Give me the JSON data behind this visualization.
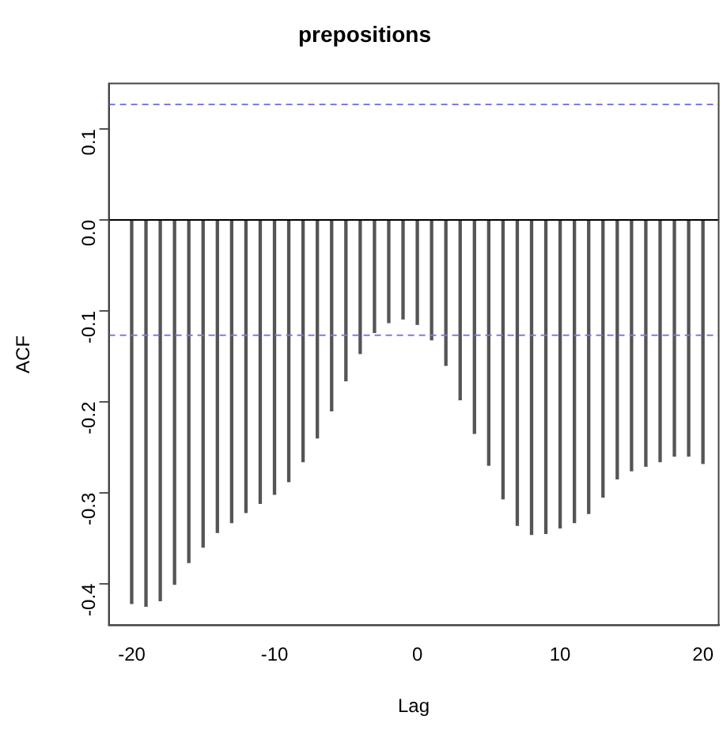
{
  "chart_data": {
    "type": "bar",
    "title": "prepositions",
    "xlabel": "Lag",
    "ylabel": "ACF",
    "x": [
      -20,
      -19,
      -18,
      -17,
      -16,
      -15,
      -14,
      -13,
      -12,
      -11,
      -10,
      -9,
      -8,
      -7,
      -6,
      -5,
      -4,
      -3,
      -2,
      -1,
      0,
      1,
      2,
      3,
      4,
      5,
      6,
      7,
      8,
      9,
      10,
      11,
      12,
      13,
      14,
      15,
      16,
      17,
      18,
      19,
      20
    ],
    "values": [
      -0.422,
      -0.425,
      -0.419,
      -0.401,
      -0.377,
      -0.36,
      -0.344,
      -0.333,
      -0.322,
      -0.312,
      -0.302,
      -0.288,
      -0.266,
      -0.24,
      -0.21,
      -0.177,
      -0.147,
      -0.124,
      -0.113,
      -0.109,
      -0.115,
      -0.132,
      -0.16,
      -0.198,
      -0.235,
      -0.27,
      -0.307,
      -0.336,
      -0.346,
      -0.345,
      -0.339,
      -0.333,
      -0.323,
      -0.305,
      -0.285,
      -0.276,
      -0.271,
      -0.266,
      -0.26,
      -0.26,
      -0.268
    ],
    "color": "#555555",
    "xlim": [
      -21.6,
      21.1
    ],
    "xticks": [
      -20,
      -10,
      0,
      10,
      20
    ],
    "ylim": [
      -0.446,
      0.15
    ],
    "yticks": [
      -0.4,
      -0.3,
      -0.2,
      -0.1,
      {
        "value": 0,
        "label": "0.0"
      },
      0.1
    ],
    "ref_lines": [
      {
        "axis": "y",
        "value": 0,
        "color": "#000000",
        "line_style": "solid"
      },
      {
        "axis": "y",
        "value": 0.127,
        "color": "#7b7be0",
        "line_style": "dashed"
      },
      {
        "axis": "y",
        "value": -0.127,
        "color": "#7b7be0",
        "line_style": "dashed"
      }
    ],
    "grid": false,
    "legend": false
  }
}
